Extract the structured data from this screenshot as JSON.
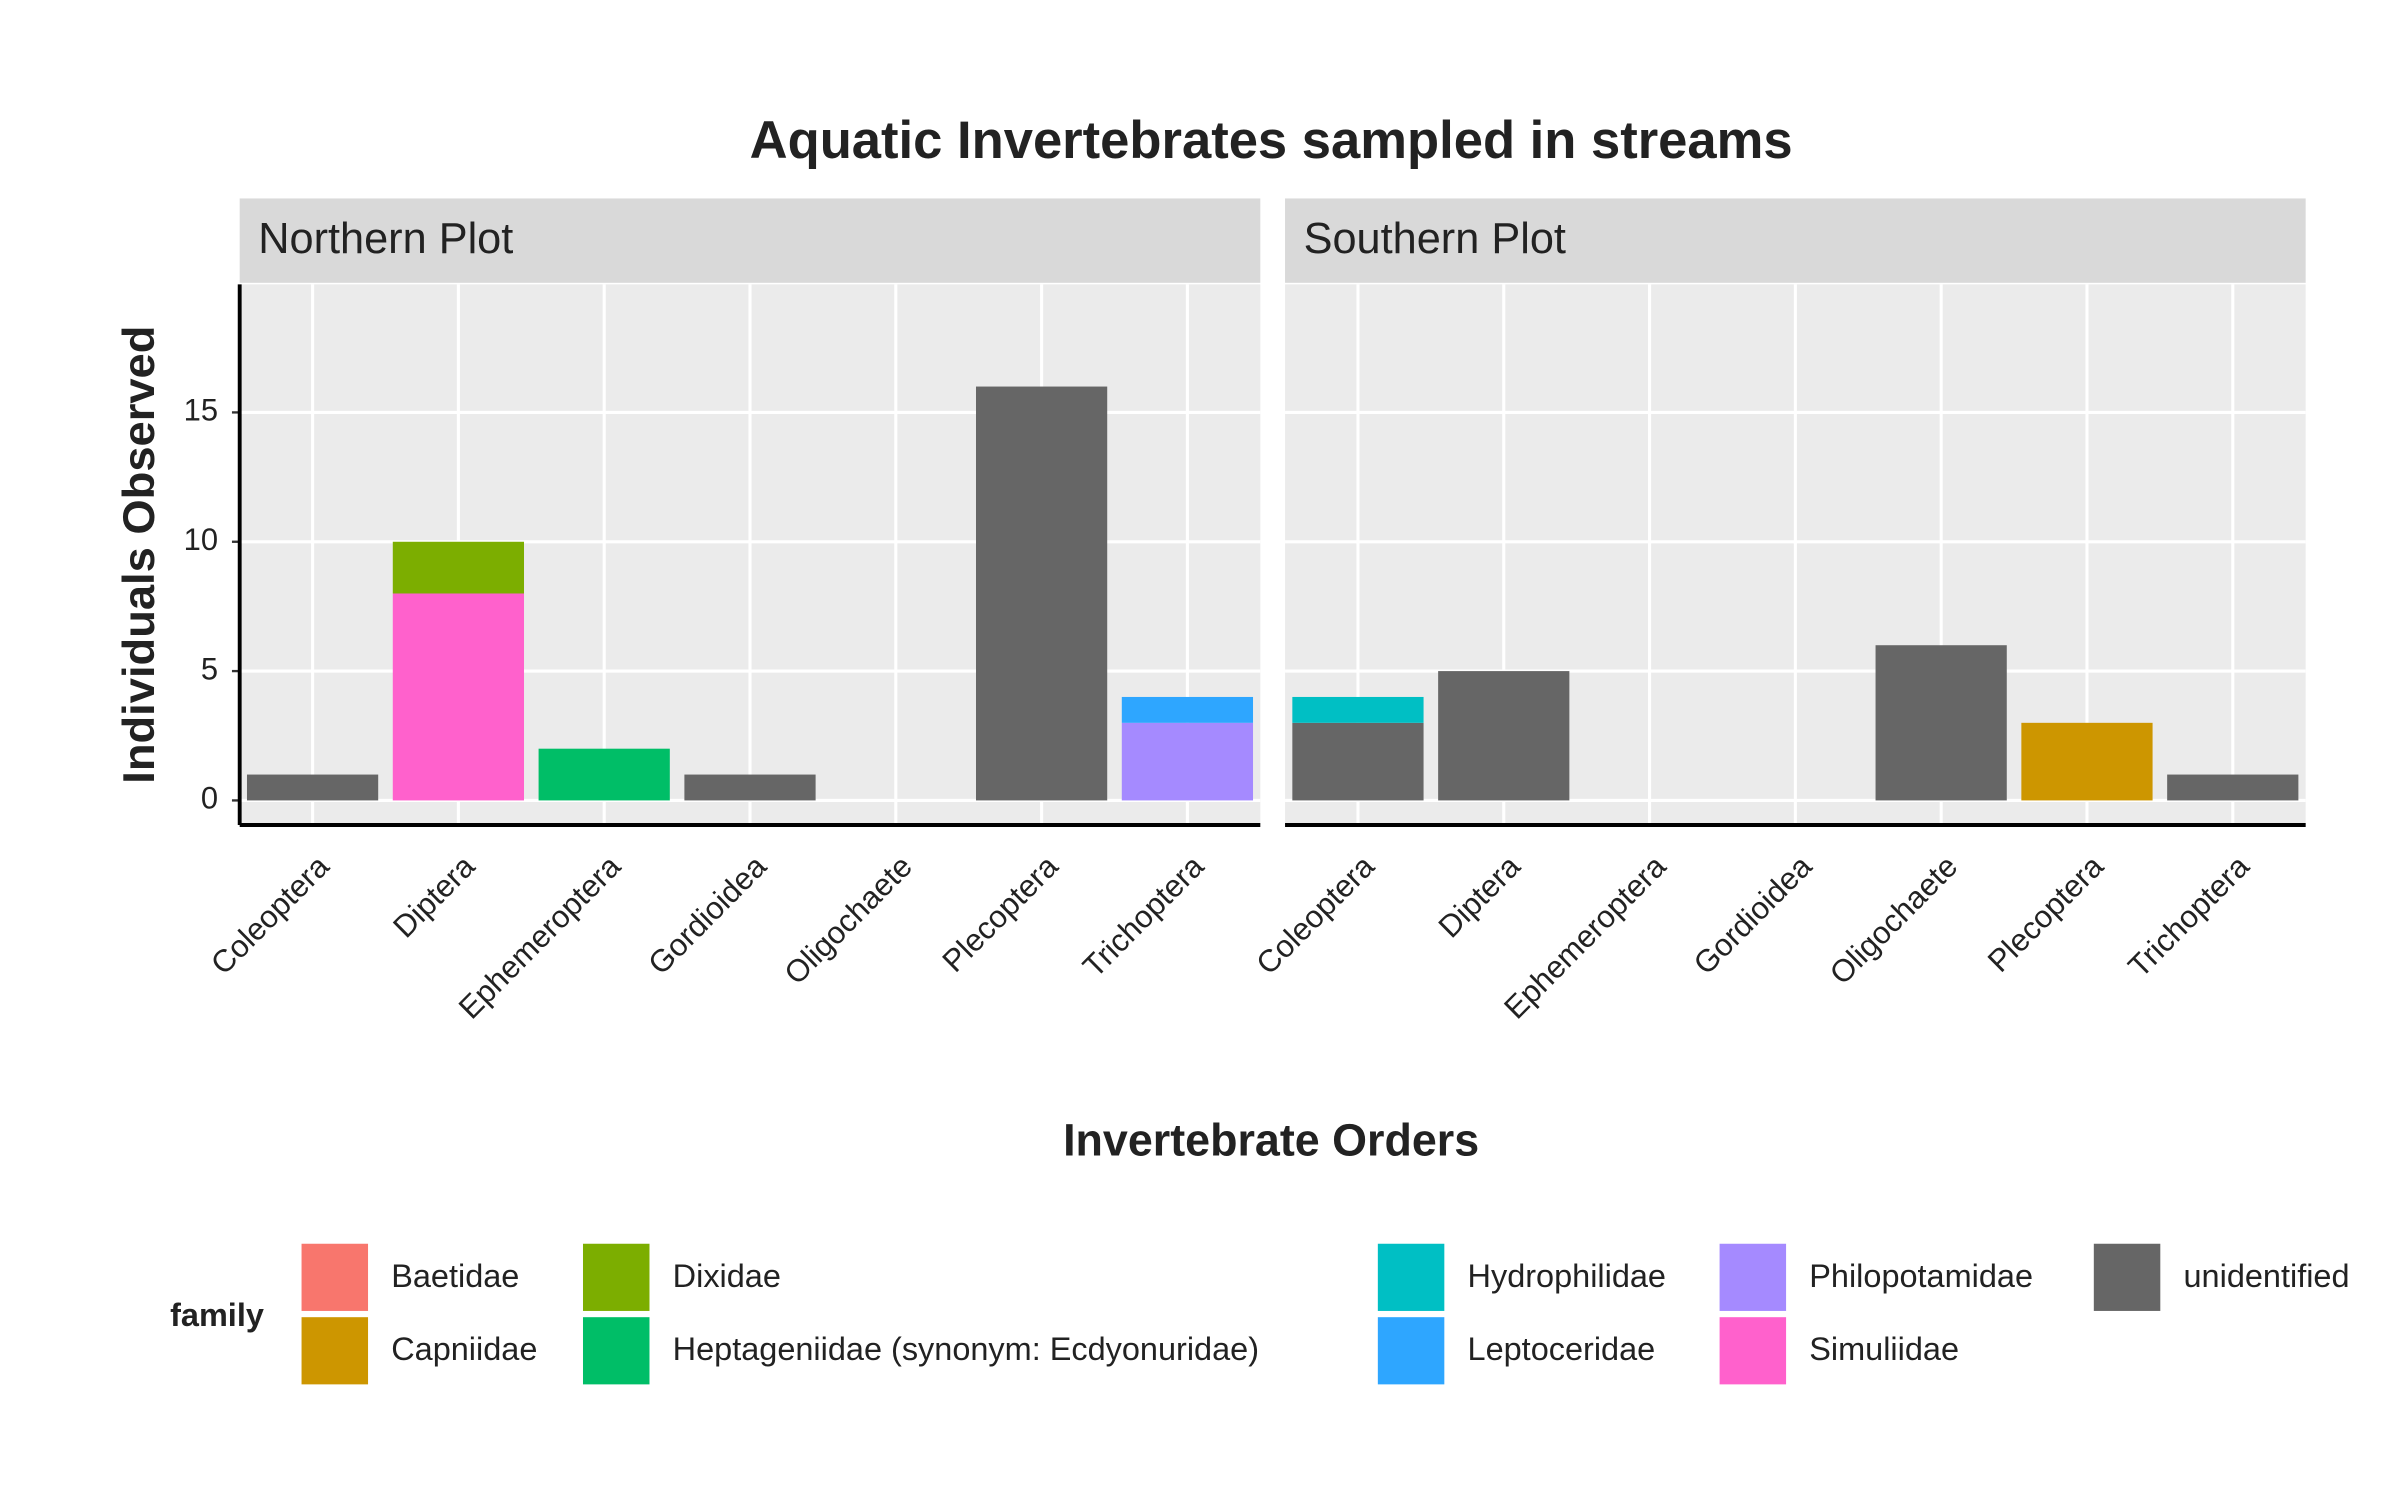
{
  "chart_data": {
    "type": "stacked-bar",
    "title": "Aquatic Invertebrates sampled in streams",
    "x_label": "Invertebrate Orders",
    "y_label": "Individuals Observed",
    "legend_title": "family",
    "categories": [
      "Coleoptera",
      "Diptera",
      "Ephemeroptera",
      "Gordioidea",
      "Oligochaete",
      "Plecoptera",
      "Trichoptera"
    ],
    "ylim": [
      -0.95,
      19.95
    ],
    "yticks": [
      0,
      5,
      10,
      15
    ],
    "grid": true,
    "series": [
      {
        "name": "Baetidae",
        "color": "#F8766D"
      },
      {
        "name": "Capniidae",
        "color": "#CD9600"
      },
      {
        "name": "Dixidae",
        "color": "#7CAE00"
      },
      {
        "name": "Heptageniidae (synonym: Ecdyonuridae)",
        "color": "#00BE67"
      },
      {
        "name": "Hydrophilidae",
        "color": "#00BFC4"
      },
      {
        "name": "Leptoceridae",
        "color": "#2EA6FF"
      },
      {
        "name": "Philopotamidae",
        "color": "#A58AFF"
      },
      {
        "name": "Simuliidae",
        "color": "#FF61CC"
      },
      {
        "name": "unidentified",
        "color": "#666666"
      }
    ],
    "facets": [
      {
        "label": "Northern Plot",
        "values": [
          [
            0,
            0,
            0,
            0,
            0,
            0,
            0
          ],
          [
            0,
            0,
            0,
            0,
            0,
            0,
            0
          ],
          [
            0,
            2,
            0,
            0,
            0,
            0,
            0
          ],
          [
            0,
            0,
            2,
            0,
            0,
            0,
            0
          ],
          [
            0,
            0,
            0,
            0,
            0,
            0,
            0
          ],
          [
            0,
            0,
            0,
            0,
            0,
            0,
            1
          ],
          [
            0,
            0,
            0,
            0,
            0,
            0,
            3
          ],
          [
            0,
            8,
            0,
            0,
            0,
            0,
            0
          ],
          [
            1,
            0,
            0,
            1,
            0,
            16,
            0
          ]
        ]
      },
      {
        "label": "Southern Plot",
        "values": [
          [
            0,
            0,
            0,
            0,
            0,
            0,
            0
          ],
          [
            0,
            0,
            0,
            0,
            0,
            3,
            0
          ],
          [
            0,
            0,
            0,
            0,
            0,
            0,
            0
          ],
          [
            0,
            0,
            0,
            0,
            0,
            0,
            0
          ],
          [
            1,
            0,
            0,
            0,
            0,
            0,
            0
          ],
          [
            0,
            0,
            0,
            0,
            0,
            0,
            0
          ],
          [
            0,
            0,
            0,
            0,
            0,
            0,
            0
          ],
          [
            0,
            0,
            0,
            0,
            0,
            0,
            0
          ],
          [
            3,
            5,
            0,
            0,
            6,
            0,
            1
          ]
        ]
      }
    ]
  }
}
